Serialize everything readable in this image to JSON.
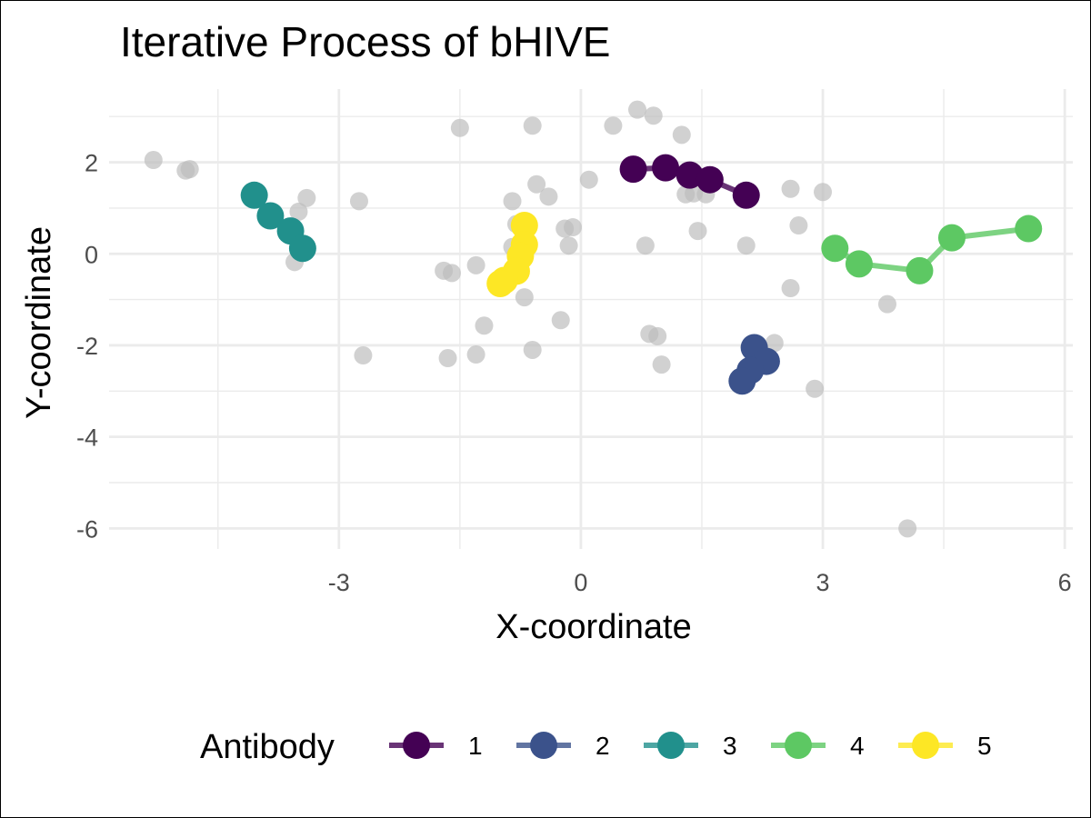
{
  "chart_data": {
    "type": "scatter",
    "title": "Iterative Process of bHIVE",
    "xlabel": "X-coordinate",
    "ylabel": "Y-coordinate",
    "xlim": [
      -5.85,
      6.1
    ],
    "ylim": [
      -6.45,
      3.6
    ],
    "xticks": [
      -3,
      0,
      3,
      6
    ],
    "yticks": [
      -6,
      -4,
      -2,
      0,
      2
    ],
    "x_tick_labels": [
      "-3",
      "0",
      "3",
      "6"
    ],
    "y_tick_labels": [
      "-6",
      "-4",
      "-2",
      "0",
      "2"
    ],
    "grid": true,
    "legend": {
      "title": "Antibody",
      "position": "bottom"
    },
    "background_points": {
      "color": "#bebebe",
      "points": [
        [
          -5.3,
          2.05
        ],
        [
          -4.9,
          1.82
        ],
        [
          -4.85,
          1.85
        ],
        [
          -3.4,
          1.22
        ],
        [
          -3.5,
          0.92
        ],
        [
          -3.55,
          -0.18
        ],
        [
          -2.75,
          1.15
        ],
        [
          -2.7,
          -2.22
        ],
        [
          -1.5,
          2.75
        ],
        [
          -1.7,
          -0.37
        ],
        [
          -1.6,
          -0.42
        ],
        [
          -1.65,
          -2.28
        ],
        [
          -1.3,
          -0.25
        ],
        [
          -1.2,
          -1.57
        ],
        [
          -1.3,
          -2.2
        ],
        [
          -0.85,
          1.15
        ],
        [
          -0.6,
          2.8
        ],
        [
          -0.55,
          1.52
        ],
        [
          -0.4,
          1.25
        ],
        [
          -0.8,
          0.65
        ],
        [
          -0.85,
          0.15
        ],
        [
          -0.7,
          -0.95
        ],
        [
          -0.6,
          -2.1
        ],
        [
          -0.25,
          -1.45
        ],
        [
          -0.2,
          0.55
        ],
        [
          -0.1,
          0.58
        ],
        [
          -0.15,
          0.18
        ],
        [
          0.1,
          1.62
        ],
        [
          0.4,
          2.8
        ],
        [
          0.7,
          3.15
        ],
        [
          0.9,
          3.02
        ],
        [
          1.25,
          2.6
        ],
        [
          1.3,
          1.3
        ],
        [
          1.4,
          1.32
        ],
        [
          1.55,
          1.3
        ],
        [
          1.45,
          0.5
        ],
        [
          0.8,
          0.18
        ],
        [
          0.85,
          -1.75
        ],
        [
          0.95,
          -1.8
        ],
        [
          1.0,
          -2.42
        ],
        [
          2.05,
          0.18
        ],
        [
          2.4,
          -1.95
        ],
        [
          2.6,
          1.42
        ],
        [
          2.7,
          0.62
        ],
        [
          2.6,
          -0.75
        ],
        [
          2.9,
          -2.95
        ],
        [
          3.0,
          1.35
        ],
        [
          3.8,
          -1.1
        ],
        [
          4.05,
          -6.0
        ]
      ]
    },
    "series": [
      {
        "name": "1",
        "color": "#440154",
        "points": [
          [
            0.65,
            1.85
          ],
          [
            1.05,
            1.88
          ],
          [
            1.35,
            1.72
          ],
          [
            1.6,
            1.62
          ],
          [
            2.05,
            1.28
          ]
        ]
      },
      {
        "name": "2",
        "color": "#3B528B",
        "points": [
          [
            2.15,
            -2.05
          ],
          [
            2.3,
            -2.35
          ],
          [
            2.1,
            -2.55
          ],
          [
            2.0,
            -2.78
          ]
        ]
      },
      {
        "name": "3",
        "color": "#21908C",
        "points": [
          [
            -4.05,
            1.28
          ],
          [
            -3.85,
            0.83
          ],
          [
            -3.6,
            0.5
          ],
          [
            -3.45,
            0.12
          ]
        ]
      },
      {
        "name": "4",
        "color": "#5DC863",
        "points": [
          [
            3.15,
            0.12
          ],
          [
            3.45,
            -0.22
          ],
          [
            4.2,
            -0.37
          ],
          [
            4.6,
            0.35
          ],
          [
            5.55,
            0.55
          ]
        ]
      },
      {
        "name": "5",
        "color": "#FDE725",
        "points": [
          [
            -0.7,
            0.62
          ],
          [
            -0.7,
            0.2
          ],
          [
            -0.75,
            -0.05
          ],
          [
            -0.8,
            -0.38
          ],
          [
            -0.95,
            -0.58
          ],
          [
            -1.0,
            -0.65
          ]
        ]
      }
    ]
  }
}
